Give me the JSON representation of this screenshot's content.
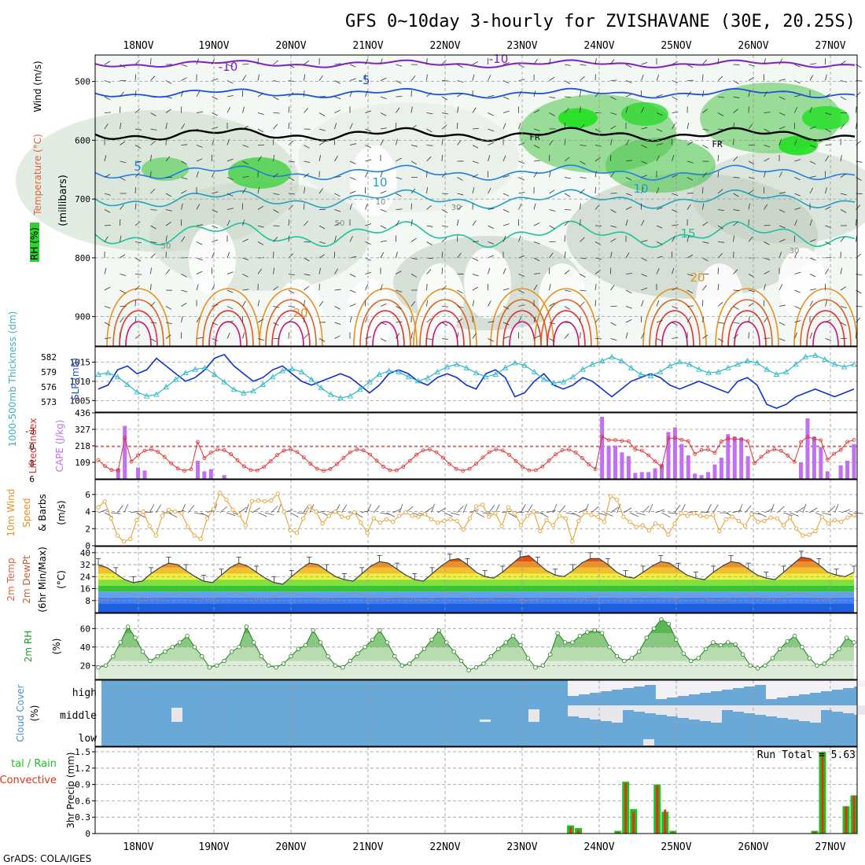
{
  "chart_data": {
    "type": "meteogram",
    "title": "GFS 0~10day 3-hourly for ZVISHAVANE (30E, 20.25S)",
    "credit": "GrADS: COLA/IGES",
    "dates": [
      "18NOV",
      "19NOV",
      "20NOV",
      "21NOV",
      "22NOV",
      "23NOV",
      "24NOV",
      "25NOV",
      "26NOV",
      "27NOV"
    ],
    "upper_air": {
      "ylabel": "(millibars)",
      "pressure_ticks": [
        500,
        600,
        700,
        800,
        900
      ],
      "legend_wind": "Wind (m/s)",
      "legend_temp": "Temperature (°C)",
      "legend_rh": "RH (%)",
      "temperature_labels": [
        "-10",
        "-10",
        "-5",
        "5",
        "10",
        "10",
        "15",
        "20",
        "20"
      ],
      "rh_labels": [
        "50",
        "30",
        "10",
        "30",
        "50"
      ],
      "freezing_label": "FR"
    },
    "slp_thickness": {
      "left_label": "1000-500mb Thickness (dm)",
      "right_label": "SLP (mb)",
      "thickness_ticks": [
        582,
        579,
        576,
        573
      ],
      "slp_ticks": [
        1015,
        1010,
        1005
      ],
      "slp": [
        1008,
        1009,
        1013,
        1014,
        1012,
        1013,
        1016,
        1014,
        1012,
        1010,
        1011,
        1013,
        1016,
        1017,
        1014,
        1012,
        1010,
        1011,
        1013,
        1014,
        1012,
        1010,
        1009,
        1010,
        1011,
        1012,
        1011,
        1009,
        1007,
        1009,
        1012,
        1013,
        1012,
        1010,
        1009,
        1011,
        1012,
        1011,
        1009,
        1008,
        1012,
        1013,
        1011,
        1006,
        1007,
        1010,
        1012,
        1009,
        1008,
        1009,
        1011,
        1010,
        1008,
        1006,
        1008,
        1010,
        1011,
        1012,
        1011,
        1009,
        1008,
        1009,
        1010,
        1009,
        1008,
        1007,
        1010,
        1011,
        1009,
        1004,
        1003,
        1004,
        1006,
        1007,
        1008,
        1007,
        1006,
        1007,
        1008
      ],
      "thickness": [
        578.5,
        578.8,
        578.0,
        576.5,
        575.0,
        574.2,
        574.5,
        576.0,
        577.5,
        578.8,
        579.5,
        579.8,
        578.5,
        577.0,
        575.5,
        574.8,
        575.2,
        576.5,
        578.0,
        579.2,
        579.6,
        579.0,
        577.5,
        575.8,
        574.5,
        573.8,
        574.2,
        575.5,
        577.0,
        578.5,
        579.2,
        579.0,
        578.0,
        577.2,
        577.8,
        579.0,
        580.0,
        580.5,
        579.8,
        578.8,
        578.0,
        578.5,
        579.8,
        580.8,
        580.3,
        579.0,
        577.5,
        576.8,
        577.0,
        578.0,
        579.5,
        580.5,
        581.2,
        582.0,
        581.2,
        579.8,
        578.5,
        578.2,
        579.0,
        580.2,
        581.0,
        580.5,
        579.5,
        578.8,
        579.0,
        579.8,
        580.5,
        581.2,
        580.8,
        579.5,
        578.5,
        579.0,
        580.5,
        582.0,
        582.3,
        581.5,
        580.5,
        580.0,
        580.5
      ]
    },
    "cape_li": {
      "left_label": "Lifted Index",
      "right_label": "CAPE (J/kg)",
      "li_ticks": [
        "-3",
        "0",
        "3",
        "6"
      ],
      "cape_ticks": [
        "436",
        "327",
        "218",
        "109"
      ],
      "cape": [
        0,
        0,
        0,
        70,
        350,
        0,
        75,
        55,
        0,
        0,
        0,
        0,
        0,
        0,
        0,
        120,
        50,
        65,
        0,
        25,
        0,
        0,
        0,
        0,
        0,
        0,
        0,
        0,
        0,
        0,
        0,
        0,
        0,
        0,
        0,
        0,
        0,
        0,
        0,
        0,
        0,
        0,
        0,
        0,
        0,
        0,
        0,
        0,
        0,
        0,
        0,
        0,
        0,
        0,
        0,
        0,
        0,
        0,
        0,
        0,
        0,
        0,
        0,
        0,
        0,
        0,
        0,
        0,
        0,
        0,
        0,
        0,
        0,
        0,
        0,
        0,
        410,
        215,
        220,
        175,
        150,
        40,
        45,
        45,
        70,
        100,
        310,
        340,
        230,
        155,
        35,
        25,
        45,
        95,
        140,
        295,
        280,
        270,
        150,
        0,
        0,
        0,
        0,
        0,
        0,
        0,
        110,
        400,
        280,
        210,
        50,
        0,
        90,
        120,
        230
      ]
    },
    "wind10m": {
      "left_label": "10m Wind Speed & Barbs",
      "right_label": "(m/s)",
      "ticks": [
        0,
        2,
        4,
        6
      ],
      "speed": [
        4.5,
        5.2,
        3.2,
        1.2,
        0.5,
        0.8,
        3.0,
        4.0,
        2.3,
        1.2,
        3.5,
        4.2,
        4.0,
        3.8,
        2.2,
        1.2,
        0.8,
        3.2,
        4.3,
        6.2,
        5.4,
        4.2,
        3.6,
        2.4,
        5.2,
        5.3,
        5.2,
        5.3,
        6.1,
        4.0,
        1.8,
        1.5,
        3.2,
        4.6,
        4.0,
        2.6,
        3.5,
        4.0,
        3.4,
        3.3,
        3.9,
        2.7,
        1.5,
        3.2,
        2.7,
        3.1,
        2.8,
        3.5,
        3.9,
        3.5,
        3.4,
        3.7,
        3.1,
        2.7,
        2.9,
        3.1,
        2.9,
        1.9,
        3.2,
        4.6,
        4.8,
        3.4,
        3.8,
        2.3,
        4.5,
        3.8,
        2.4,
        3.5,
        4.0,
        1.7,
        3.0,
        2.4,
        3.5,
        3.2,
        0.5,
        2.9,
        3.9,
        3.6,
        3.4,
        2.8,
        5.8,
        5.4,
        3.4,
        2.8,
        2.2,
        2.4,
        1.8,
        2.6,
        2.3,
        1.3,
        2.6,
        3.8,
        3.5,
        3.8,
        3.5,
        3.4,
        3.6,
        1.7,
        3.1,
        3.4,
        2.9,
        2.3,
        3.7,
        2.8,
        2.9,
        3.3,
        3.2,
        2.4,
        3.3,
        2.0,
        1.2,
        1.3,
        1.7,
        3.4,
        2.6,
        3.0,
        2.8,
        3.3,
        3.6
      ]
    },
    "temperature": {
      "left_label": "2m Temp 2m DewPt (6hr Min/Max)",
      "right_label": "(°C)",
      "ticks": [
        8,
        16,
        24,
        32,
        40
      ],
      "temp": [
        32,
        30,
        26,
        22,
        20,
        21,
        26,
        30,
        33,
        32,
        28,
        24,
        21,
        20,
        25,
        30,
        33,
        31,
        27,
        23,
        20,
        19,
        24,
        29,
        33,
        32,
        28,
        24,
        22,
        21,
        26,
        31,
        34,
        33,
        29,
        25,
        22,
        21,
        26,
        31,
        35,
        36,
        32,
        27,
        24,
        23,
        27,
        32,
        37,
        38,
        33,
        28,
        25,
        24,
        28,
        33,
        36,
        36,
        32,
        27,
        24,
        23,
        27,
        31,
        34,
        33,
        29,
        25,
        23,
        22,
        27,
        31,
        34,
        33,
        29,
        25,
        23,
        22,
        27,
        32,
        37,
        36,
        32,
        27,
        25,
        24,
        27
      ],
      "dewpoint": [
        8,
        9,
        11,
        13,
        12,
        10,
        9,
        10,
        12,
        13,
        11,
        10,
        9,
        10,
        12,
        13,
        12,
        10,
        9,
        10,
        12,
        13,
        12,
        11,
        10,
        9,
        10,
        12,
        13,
        12,
        10,
        9,
        10,
        11,
        10,
        9,
        8,
        10,
        12,
        13,
        11,
        9,
        8,
        9,
        11,
        12,
        10,
        8,
        9,
        11,
        12,
        11,
        10,
        9,
        10,
        12,
        12,
        10,
        9,
        11,
        12,
        11,
        10,
        9,
        10,
        12,
        11,
        9,
        8,
        9,
        11,
        12,
        11,
        10,
        9,
        10,
        12,
        13,
        12,
        10,
        9,
        11,
        13,
        12
      ]
    },
    "rh2m": {
      "left_label": "2m RH",
      "right_label": "(%)",
      "ticks": [
        20,
        40,
        60
      ],
      "rh": [
        18,
        20,
        30,
        45,
        62,
        50,
        35,
        25,
        30,
        35,
        40,
        45,
        52,
        40,
        30,
        18,
        20,
        25,
        35,
        40,
        62,
        45,
        30,
        20,
        18,
        22,
        30,
        38,
        42,
        58,
        45,
        30,
        20,
        18,
        25,
        33,
        40,
        48,
        58,
        45,
        30,
        20,
        22,
        30,
        38,
        48,
        58,
        45,
        35,
        25,
        15,
        18,
        22,
        30,
        38,
        45,
        52,
        42,
        28,
        18,
        20,
        32,
        55,
        45,
        45,
        52,
        56,
        58,
        55,
        40,
        30,
        25,
        28,
        35,
        50,
        60,
        70,
        65,
        48,
        33,
        25,
        28,
        38,
        45,
        42,
        45,
        43,
        32,
        20,
        17,
        20,
        28,
        38,
        46,
        52,
        40,
        28,
        20,
        22,
        30,
        38,
        50,
        45
      ]
    },
    "cloud_cover": {
      "left_label": "Cloud Cover",
      "right_label": "(%)",
      "levels": [
        "high",
        "middle",
        "low"
      ]
    },
    "precip": {
      "left_label": "Total / Rain Convective",
      "right_label": "3hr Precip (mm)",
      "ticks": [
        "0",
        "0.3",
        "0.6",
        "0.9",
        "1.2",
        "1.5"
      ],
      "run_total": "Run Total = 5.63",
      "total": [
        0,
        0,
        0,
        0,
        0,
        0,
        0,
        0,
        0,
        0,
        0,
        0,
        0,
        0,
        0,
        0,
        0,
        0,
        0,
        0,
        0,
        0,
        0,
        0,
        0,
        0,
        0,
        0,
        0,
        0,
        0,
        0,
        0,
        0,
        0,
        0,
        0,
        0,
        0,
        0,
        0,
        0,
        0,
        0,
        0,
        0,
        0,
        0,
        0,
        0,
        0,
        0,
        0,
        0,
        0,
        0,
        0,
        0,
        0,
        0,
        0.15,
        0.1,
        0,
        0,
        0,
        0,
        0.05,
        0.95,
        0.45,
        0,
        0,
        0.9,
        0.4,
        0.05,
        0,
        0,
        0,
        0,
        0,
        0,
        0,
        0,
        0,
        0,
        0,
        0,
        0,
        0,
        0,
        0,
        0,
        0.05,
        1.5,
        0,
        0,
        0.5,
        0.7
      ],
      "convective": [
        0,
        0,
        0,
        0,
        0,
        0,
        0,
        0,
        0,
        0,
        0,
        0,
        0,
        0,
        0,
        0,
        0,
        0,
        0,
        0,
        0,
        0,
        0,
        0,
        0,
        0,
        0,
        0,
        0,
        0,
        0,
        0,
        0,
        0,
        0,
        0,
        0,
        0,
        0,
        0,
        0,
        0,
        0,
        0,
        0,
        0,
        0,
        0,
        0,
        0,
        0,
        0,
        0,
        0,
        0,
        0,
        0,
        0,
        0,
        0,
        0.12,
        0.06,
        0,
        0,
        0,
        0,
        0.03,
        0.93,
        0.4,
        0,
        0,
        0.88,
        0.44,
        0.03,
        0,
        0,
        0,
        0,
        0,
        0,
        0,
        0,
        0,
        0,
        0,
        0,
        0,
        0,
        0,
        0,
        0,
        0.04,
        1.48,
        0,
        0,
        0.5,
        0.7
      ]
    },
    "colors": {
      "temp_cold": "#8020c0",
      "temp_mid": "#1e50e0",
      "rh_high": "#00e000",
      "slp_line": "#1030d0",
      "thick_line": "#30b8c8",
      "li_line": "#e03030",
      "cape_bar": "#c070f0",
      "wind_line": "#e8a030",
      "rh2m_fill": "#30b030",
      "cloud_blue": "#6aa8d8",
      "precip_total": "#20c020",
      "precip_conv": "#e03020"
    }
  }
}
